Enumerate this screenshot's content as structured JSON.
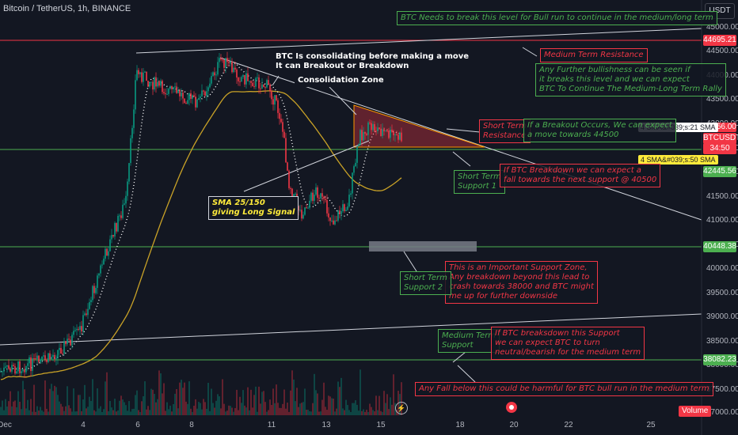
{
  "header": {
    "symbol_title": "Bitcoin / TetherUS, 1h, BINANCE",
    "currency_button": "USDT"
  },
  "y_axis": {
    "ticks": [
      "45000.00",
      "44500.00",
      "44000.00",
      "43500.00",
      "43000.00",
      "42500.00",
      "42000.00",
      "41500.00",
      "41000.00",
      "40500.00",
      "40000.00",
      "39500.00",
      "39000.00",
      "38500.00",
      "38000.00",
      "37500.00",
      "37000.00"
    ]
  },
  "x_axis": {
    "ticks": [
      "Dec",
      "4",
      "6",
      "8",
      "11",
      "13",
      "15",
      "18",
      "20",
      "22",
      "25"
    ]
  },
  "price_labels": {
    "resistance": "44695.21",
    "last_price": "42666.00",
    "countdown": "34:50",
    "symbol": "BTCUSDT",
    "support_1": "42445.56",
    "support_2": "40448.38",
    "medium_support": "38082.23",
    "volume": "Volume"
  },
  "indicators": {
    "sma_fast": "4 SMA&#039;s:21 SMA",
    "sma_slow": "4 SMA&#039;s:50 SMA"
  },
  "annotations": {
    "bull_run_level": "BTC Needs to break this level for Bull run to continue in the medium/long term",
    "medium_resistance": "Medium Term Resistance",
    "bullishness": [
      "Any Further bullishness can be seen if",
      "it breaks this level and we can expect",
      "BTC To Continue The Medium-Long Term Rally"
    ],
    "consolidating": [
      "BTC Is consolidating before making a move",
      "It can Breakout or Breakdown"
    ],
    "consolidation_zone": "Consolidation Zone",
    "short_resistance": [
      "Short Term",
      "Resistance"
    ],
    "breakout": [
      "If a Breakout Occurs, We can expect",
      "a move towards 44500"
    ],
    "short_support_1": [
      "Short Term",
      "Support 1"
    ],
    "breakdown": [
      "If BTC Breakdown we can expect a",
      "fall towards the next support @ 40500"
    ],
    "sma_signal": [
      "SMA 25/150",
      "giving Long Signal"
    ],
    "important_support": [
      "This is an Important Support Zone,",
      "Any breakdown beyond this lead to",
      "crash towards 38000 and BTC might",
      "me up for further downside"
    ],
    "short_support_2": [
      "Short Term",
      "Support 2"
    ],
    "medium_support": [
      "Medium Term",
      "Support"
    ],
    "neutral_bearish": [
      "If BTC breaksdown this Support",
      "we can expect BTC to turn",
      "neutral/bearish for the medium term"
    ],
    "harmful_fall": "Any Fall below this could be harmful for BTC bull run in the medium term"
  },
  "colors": {
    "background": "#131722",
    "up": "#089981",
    "down": "#f23645",
    "sma_slow": "#c9a227",
    "support_line": "#4caf50",
    "resistance_line": "#f23645"
  }
}
